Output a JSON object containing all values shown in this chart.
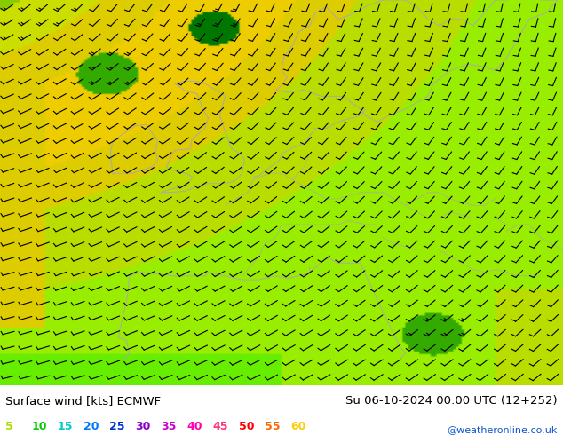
{
  "title_left": "Surface wind [kts] ECMWF",
  "title_right": "Su 06-10-2024 00:00 UTC (12+252)",
  "credit": "@weatheronline.co.uk",
  "legend_values": [
    "5",
    "10",
    "15",
    "20",
    "25",
    "30",
    "35",
    "40",
    "45",
    "50",
    "55",
    "60"
  ],
  "legend_colors": [
    "#aadd00",
    "#00cc00",
    "#00cccc",
    "#0077ff",
    "#0033cc",
    "#8800cc",
    "#cc00cc",
    "#ff00aa",
    "#ff3377",
    "#ff0000",
    "#ff6600",
    "#ffcc00"
  ],
  "map_bg": "#eecc00",
  "color_stops": {
    "0": "#33dd00",
    "5": "#66ee00",
    "10": "#99dd00",
    "15": "#ccdd00",
    "20": "#eecc00",
    "25": "#ddbb00",
    "30": "#ccaa00"
  },
  "barb_color": "#000000",
  "coast_color": "#aaaaaa",
  "bottom_bar_height": 0.115,
  "figsize": [
    6.34,
    4.9
  ],
  "dpi": 100
}
